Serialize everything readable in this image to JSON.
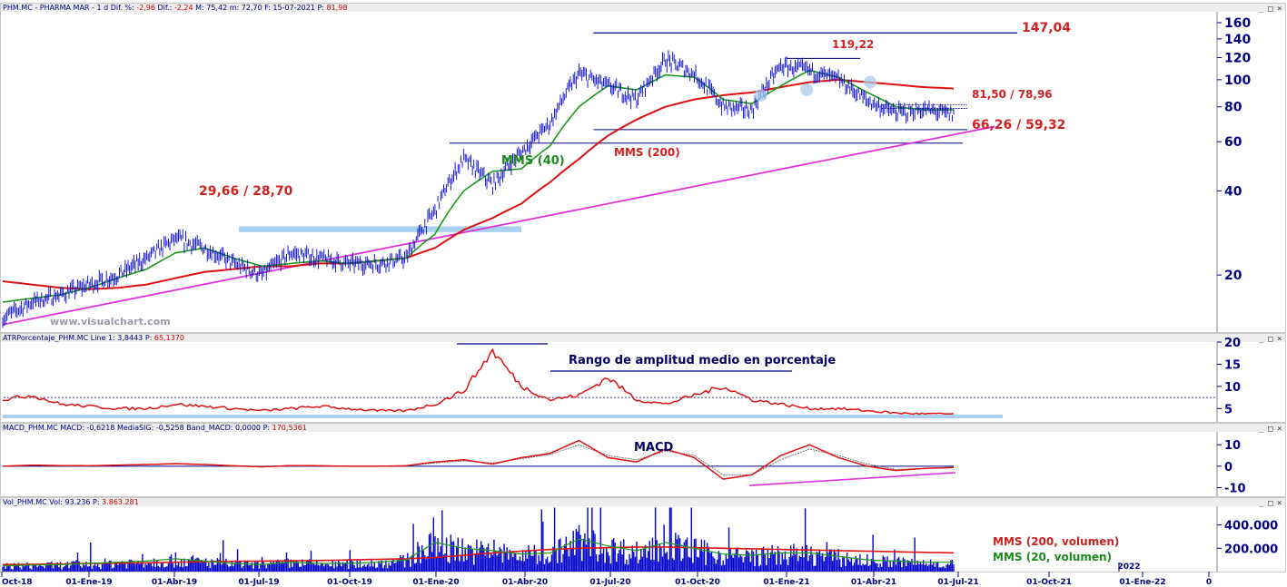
{
  "headers": {
    "price": {
      "symbol": "PHM.MC - PHARMA MAR -  1 d",
      "dif_pct_label": "Dif. %:",
      "dif_pct": "-2,96",
      "dif_label": "Dif.:",
      "dif": "-2,24",
      "stats": "M: 75,42  m: 72,70  F: 15-07-2021",
      "p_label": "P:",
      "p": "81,98"
    },
    "atr": {
      "label": "ATRPorcentaje_PHM.MC  Line 1: 3,8443",
      "p_label": "P:",
      "p": "65,1370"
    },
    "macd": {
      "label": "MACD_PHM.MC  MACD: -0,6218  MediaSIG: -0,5258  Band_MACD: 0,0000",
      "p_label": "P:",
      "p": "170,5361"
    },
    "vol": {
      "label": "Vol_PHM.MC  Vol: 93.236",
      "p_label": "P:",
      "p": "3.863.281"
    }
  },
  "watermark": "www.visualchart.com",
  "annotations": {
    "resistance": "147,04",
    "peak": "119,22",
    "range_top": "81,50 / 78,96",
    "range_bottom": "66,26 / 59,32",
    "support_2019": "29,66 / 28,70",
    "mms40": "MMS (40)",
    "mms200": "MMS (200)",
    "atr_title": "Rango de amplitud medio en porcentaje",
    "macd_title": "MACD",
    "vol_mms200": "MMS (200, volumen)",
    "vol_mms20": "MMS (20, volumen)"
  },
  "colors": {
    "price": "#0000cc",
    "mms40": "#1a9a1a",
    "mms200": "#dd1111",
    "trendline": "#dd33dd",
    "support_band": "#a8d0f0",
    "axis_text": "#000080",
    "annotation_red": "#d02020"
  },
  "chart_data": [
    {
      "type": "line",
      "panel": "price",
      "y_scale": "log",
      "y_ticks": [
        "160",
        "140",
        "120",
        "100",
        "80",
        "60",
        "40",
        "20"
      ],
      "y_tick_values": [
        160,
        140,
        120,
        100,
        80,
        60,
        40,
        20
      ],
      "ylim": [
        12.5,
        175
      ],
      "x_ticks": [
        "Oct-18",
        "01-Ene-19",
        "01-Abr-19",
        "01-Jul-19",
        "01-Oct-19",
        "01-Ene-20",
        "01-Abr-20",
        "01-Jul-20",
        "01-Oct-20",
        "01-Ene-21",
        "01-Abr-21",
        "01-Jul-21",
        "01-Oct-21",
        "01-Ene-22",
        "0"
      ],
      "x_tick_year": "2022",
      "series": [
        {
          "name": "",
          "role": "price",
          "x": [
            "2018-10",
            "2018-11",
            "2018-12",
            "2019-01",
            "2019-02",
            "2019-03",
            "2019-04",
            "2019-05",
            "2019-06",
            "2019-07",
            "2019-08",
            "2019-09",
            "2019-10",
            "2019-11",
            "2019-12",
            "2020-01",
            "2020-02",
            "2020-03",
            "2020-04",
            "2020-05",
            "2020-06",
            "2020-07",
            "2020-08",
            "2020-09",
            "2020-10",
            "2020-11",
            "2020-12",
            "2021-01",
            "2021-02",
            "2021-03",
            "2021-04",
            "2021-05",
            "2021-06",
            "2021-07"
          ],
          "values": [
            14,
            16,
            17,
            18.5,
            20,
            23,
            27,
            25,
            22,
            20,
            24,
            23,
            22,
            22,
            23,
            34,
            52,
            42,
            55,
            70,
            105,
            95,
            85,
            118,
            105,
            80,
            78,
            112,
            108,
            100,
            84,
            76,
            78,
            75
          ]
        },
        {
          "name": "MMS (40)",
          "values": [
            16,
            16.5,
            17,
            18,
            19.5,
            21,
            24,
            25,
            23,
            21.5,
            22,
            22.5,
            22,
            22.5,
            23,
            28,
            40,
            47,
            48,
            58,
            80,
            95,
            92,
            104,
            102,
            85,
            82,
            95,
            108,
            102,
            90,
            80,
            78,
            78
          ]
        },
        {
          "name": "MMS (200)",
          "values": [
            19,
            18.5,
            18,
            17.8,
            18,
            18.5,
            19.5,
            20.5,
            21,
            21.5,
            21.5,
            22,
            22,
            22.5,
            23,
            25,
            29,
            32,
            36,
            43,
            52,
            63,
            72,
            80,
            85,
            88,
            90,
            94,
            98,
            100,
            98,
            96,
            94,
            93
          ]
        }
      ],
      "levels": [
        147.04,
        119.22,
        81.5,
        78.96,
        66.26,
        59.32,
        29.66,
        28.7
      ]
    },
    {
      "type": "line",
      "panel": "atr",
      "y_ticks": [
        "20",
        "15",
        "10",
        "5"
      ],
      "y_tick_values": [
        20,
        15,
        10,
        5
      ],
      "ylim": [
        2,
        20
      ],
      "series": [
        {
          "name": "",
          "x": [
            "2018-10",
            "2018-11",
            "2018-12",
            "2019-01",
            "2019-02",
            "2019-03",
            "2019-04",
            "2019-05",
            "2019-06",
            "2019-07",
            "2019-08",
            "2019-09",
            "2019-10",
            "2019-11",
            "2019-12",
            "2020-01",
            "2020-02",
            "2020-03",
            "2020-04",
            "2020-05",
            "2020-06",
            "2020-07",
            "2020-08",
            "2020-09",
            "2020-10",
            "2020-11",
            "2020-12",
            "2021-01",
            "2021-02",
            "2021-03",
            "2021-04",
            "2021-05",
            "2021-06",
            "2021-07"
          ],
          "values": [
            7,
            8,
            6,
            5.5,
            5,
            5,
            6,
            5.5,
            5,
            4.5,
            5,
            5.5,
            5,
            4.5,
            4.5,
            6,
            9,
            18,
            10,
            7,
            8,
            12,
            7,
            6,
            8,
            10,
            7,
            6,
            5,
            5,
            4.5,
            4,
            3.8,
            3.8
          ]
        }
      ],
      "reference": 7.5
    },
    {
      "type": "line",
      "panel": "macd",
      "y_ticks": [
        "10",
        "0",
        "-10"
      ],
      "y_tick_values": [
        10,
        0,
        -10
      ],
      "ylim": [
        -14,
        16
      ],
      "series": [
        {
          "name": "MACD",
          "values": [
            0,
            0.5,
            0.3,
            0.2,
            0.5,
            0.8,
            1.2,
            0.8,
            0.2,
            -0.3,
            0.3,
            0.2,
            0,
            0,
            0.2,
            2,
            3,
            1,
            4,
            6,
            12,
            4,
            2,
            8,
            4,
            -6,
            -4,
            5,
            10,
            4,
            0,
            -2,
            -1,
            -0.6
          ]
        },
        {
          "name": "MediaSIG",
          "values": [
            0,
            0.4,
            0.3,
            0.2,
            0.4,
            0.7,
            1,
            0.8,
            0.3,
            -0.2,
            0.2,
            0.2,
            0,
            0,
            0.1,
            1.5,
            2.5,
            1.5,
            3.5,
            5.5,
            10,
            5,
            3,
            7,
            5,
            -4,
            -4,
            3,
            8,
            5,
            1,
            -1.5,
            -1,
            -0.5
          ]
        }
      ]
    },
    {
      "type": "bar",
      "panel": "volume",
      "y_ticks": [
        "400.000",
        "200.000"
      ],
      "y_tick_values": [
        400000,
        200000
      ],
      "ylim": [
        0,
        560000
      ],
      "series": [
        {
          "name": "MMS (200, volumen)",
          "values": [
            60000,
            62000,
            65000,
            70000,
            72000,
            75000,
            80000,
            85000,
            88000,
            90000,
            92000,
            95000,
            100000,
            105000,
            110000,
            120000,
            140000,
            160000,
            175000,
            190000,
            200000,
            205000,
            210000,
            210000,
            205000,
            200000,
            195000,
            190000,
            185000,
            180000,
            175000,
            170000,
            165000,
            160000
          ]
        },
        {
          "name": "MMS (20, volumen)",
          "values": [
            50000,
            55000,
            60000,
            70000,
            80000,
            90000,
            110000,
            90000,
            70000,
            60000,
            80000,
            70000,
            70000,
            80000,
            100000,
            250000,
            200000,
            180000,
            150000,
            160000,
            280000,
            220000,
            180000,
            250000,
            200000,
            150000,
            140000,
            160000,
            160000,
            130000,
            100000,
            90000,
            80000,
            80000
          ]
        }
      ]
    }
  ]
}
